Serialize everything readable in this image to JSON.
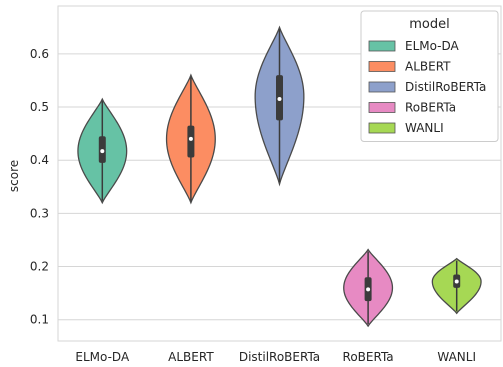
{
  "chart_data": {
    "type": "violin",
    "xlabel": "",
    "ylabel": "score",
    "ylim": [
      0.06,
      0.69
    ],
    "yticks": [
      0.1,
      0.2,
      0.3,
      0.4,
      0.5,
      0.6
    ],
    "ytick_labels": [
      "0.1",
      "0.2",
      "0.3",
      "0.4",
      "0.5",
      "0.6"
    ],
    "grid": true,
    "legend": {
      "title": "model",
      "position": "top-right",
      "entries": [
        "ELMo-DA",
        "ALBERT",
        "DistilRoBERTa",
        "RoBERTa",
        "WANLI"
      ]
    },
    "categories": [
      "ELMo-DA",
      "ALBERT",
      "DistilRoBERTa",
      "RoBERTa",
      "WANLI"
    ],
    "series": [
      {
        "name": "ELMo-DA",
        "color": "#66c2a5",
        "min": 0.32,
        "q1": 0.395,
        "median": 0.417,
        "q3": 0.445,
        "max": 0.515,
        "bulge": 0.417,
        "halfwidth": 0.55
      },
      {
        "name": "ALBERT",
        "color": "#fc8d62",
        "min": 0.32,
        "q1": 0.405,
        "median": 0.44,
        "q3": 0.465,
        "max": 0.56,
        "bulge": 0.44,
        "halfwidth": 0.55
      },
      {
        "name": "DistilRoBERTa",
        "color": "#8da0cb",
        "min": 0.355,
        "q1": 0.475,
        "median": 0.515,
        "q3": 0.56,
        "max": 0.65,
        "bulge": 0.52,
        "halfwidth": 0.55
      },
      {
        "name": "RoBERTa",
        "color": "#e78ac3",
        "min": 0.088,
        "q1": 0.135,
        "median": 0.157,
        "q3": 0.18,
        "max": 0.232,
        "bulge": 0.16,
        "halfwidth": 0.55
      },
      {
        "name": "WANLI",
        "color": "#a6d854",
        "min": 0.112,
        "q1": 0.16,
        "median": 0.172,
        "q3": 0.185,
        "max": 0.215,
        "bulge": 0.172,
        "halfwidth": 0.55
      }
    ]
  }
}
